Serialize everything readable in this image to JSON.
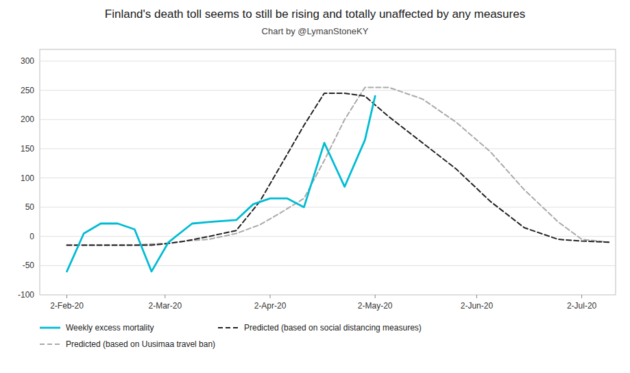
{
  "chart_data": {
    "type": "line",
    "title": "Finland's death toll seems to still be rising and totally unaffected by any measures",
    "subtitle": "Chart by @LymanStoneKY",
    "xlim": [
      -8,
      162
    ],
    "xticks": [
      {
        "value": 0,
        "label": "2-Feb-20"
      },
      {
        "value": 29,
        "label": "2-Mar-20"
      },
      {
        "value": 60,
        "label": "2-Apr-20"
      },
      {
        "value": 91,
        "label": "2-May-20"
      },
      {
        "value": 121,
        "label": "2-Jun-20"
      },
      {
        "value": 152,
        "label": "2-Jul-20"
      }
    ],
    "ylim": [
      -100,
      320
    ],
    "yticks": [
      -100,
      -50,
      0,
      50,
      100,
      150,
      200,
      250,
      300
    ],
    "grid": true,
    "legend": "bottom",
    "series": [
      {
        "name": "Weekly excess mortality",
        "color": "#00bcd4",
        "line_style": "solid",
        "x": [
          0,
          5,
          10,
          15,
          20,
          25,
          30,
          37,
          43,
          50,
          55,
          60,
          65,
          70,
          76,
          82,
          88,
          91
        ],
        "values": [
          -60,
          5,
          22,
          22,
          12,
          -60,
          -10,
          22,
          25,
          28,
          55,
          65,
          65,
          50,
          160,
          85,
          165,
          240
        ]
      },
      {
        "name": "Predicted (based on social distancing measures)",
        "color": "#222222",
        "line_style": "dashed",
        "x": [
          0,
          5,
          10,
          15,
          20,
          25,
          30,
          35,
          42,
          50,
          57,
          63,
          70,
          76,
          82,
          88,
          95,
          105,
          115,
          125,
          135,
          145,
          152,
          160
        ],
        "values": [
          -15,
          -15,
          -15,
          -15,
          -15,
          -15,
          -12,
          -8,
          0,
          10,
          60,
          120,
          190,
          245,
          245,
          240,
          205,
          160,
          115,
          60,
          15,
          -5,
          -8,
          -10
        ]
      },
      {
        "name": "Predicted (based on Uusimaa travel ban)",
        "color": "#aaaaaa",
        "line_style": "dashed",
        "x": [
          0,
          5,
          10,
          15,
          20,
          25,
          30,
          35,
          42,
          50,
          57,
          63,
          70,
          76,
          82,
          88,
          95,
          105,
          115,
          125,
          135,
          145,
          152,
          160
        ],
        "values": [
          -15,
          -15,
          -15,
          -15,
          -15,
          -13,
          -12,
          -8,
          -5,
          5,
          20,
          40,
          65,
          130,
          200,
          255,
          255,
          235,
          195,
          145,
          80,
          25,
          -5,
          -10
        ]
      }
    ]
  }
}
